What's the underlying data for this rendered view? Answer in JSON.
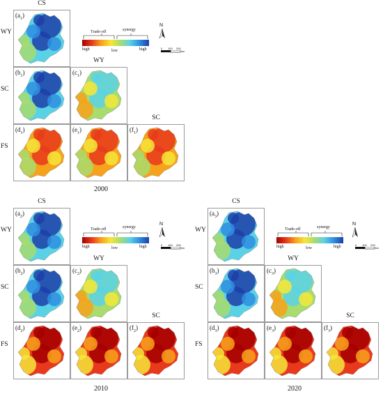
{
  "map_data": {
    "row_labels": [
      "WY",
      "SC",
      "FS"
    ],
    "col_labels": [
      "CS",
      "WY",
      "SC"
    ],
    "legend": {
      "tradeoff": "Trade-off",
      "synergy": "synergy",
      "high_left": "high",
      "low": "low",
      "high_right": "high",
      "colors": [
        "#a50000",
        "#e8391c",
        "#f7a21b",
        "#f5e63a",
        "#a8dc6d",
        "#5ad2e6",
        "#2f8fe0",
        "#1e3fa8"
      ]
    },
    "north_label": "N",
    "scale": {
      "zero": "0",
      "mid": "100",
      "far": "200",
      "unit": "km"
    },
    "panels": [
      {
        "year": "2000",
        "cells": [
          {
            "row": 0,
            "col": 0,
            "label": "a",
            "sub": "1",
            "relationship": "synergy",
            "level": 0.72
          },
          {
            "row": 1,
            "col": 0,
            "label": "b",
            "sub": "1",
            "relationship": "synergy",
            "level": 0.7
          },
          {
            "row": 1,
            "col": 1,
            "label": "c",
            "sub": "1",
            "relationship": "weak synergy",
            "level": 0.45
          },
          {
            "row": 2,
            "col": 0,
            "label": "d",
            "sub": "1",
            "relationship": "trade-off",
            "level": 0.55
          },
          {
            "row": 2,
            "col": 1,
            "label": "e",
            "sub": "1",
            "relationship": "trade-off",
            "level": 0.6
          },
          {
            "row": 2,
            "col": 2,
            "label": "f",
            "sub": "1",
            "relationship": "trade-off",
            "level": 0.6
          }
        ]
      },
      {
        "year": "2010",
        "cells": [
          {
            "row": 0,
            "col": 0,
            "label": "a",
            "sub": "2",
            "relationship": "synergy",
            "level": 0.68
          },
          {
            "row": 1,
            "col": 0,
            "label": "b",
            "sub": "2",
            "relationship": "synergy",
            "level": 0.7
          },
          {
            "row": 1,
            "col": 1,
            "label": "c",
            "sub": "2",
            "relationship": "weak synergy",
            "level": 0.4
          },
          {
            "row": 2,
            "col": 0,
            "label": "d",
            "sub": "2",
            "relationship": "trade-off",
            "level": 0.75
          },
          {
            "row": 2,
            "col": 1,
            "label": "e",
            "sub": "2",
            "relationship": "trade-off",
            "level": 0.8
          },
          {
            "row": 2,
            "col": 2,
            "label": "f",
            "sub": "2",
            "relationship": "trade-off",
            "level": 0.75
          }
        ]
      },
      {
        "year": "2020",
        "cells": [
          {
            "row": 0,
            "col": 0,
            "label": "a",
            "sub": "3",
            "relationship": "synergy",
            "level": 0.8
          },
          {
            "row": 1,
            "col": 0,
            "label": "b",
            "sub": "3",
            "relationship": "synergy",
            "level": 0.78
          },
          {
            "row": 1,
            "col": 1,
            "label": "c",
            "sub": "3",
            "relationship": "weak synergy",
            "level": 0.35
          },
          {
            "row": 2,
            "col": 0,
            "label": "d",
            "sub": "3",
            "relationship": "trade-off",
            "level": 0.72
          },
          {
            "row": 2,
            "col": 1,
            "label": "e",
            "sub": "3",
            "relationship": "trade-off",
            "level": 0.78
          },
          {
            "row": 2,
            "col": 2,
            "label": "f",
            "sub": "3",
            "relationship": "trade-off",
            "level": 0.72
          }
        ]
      }
    ]
  }
}
